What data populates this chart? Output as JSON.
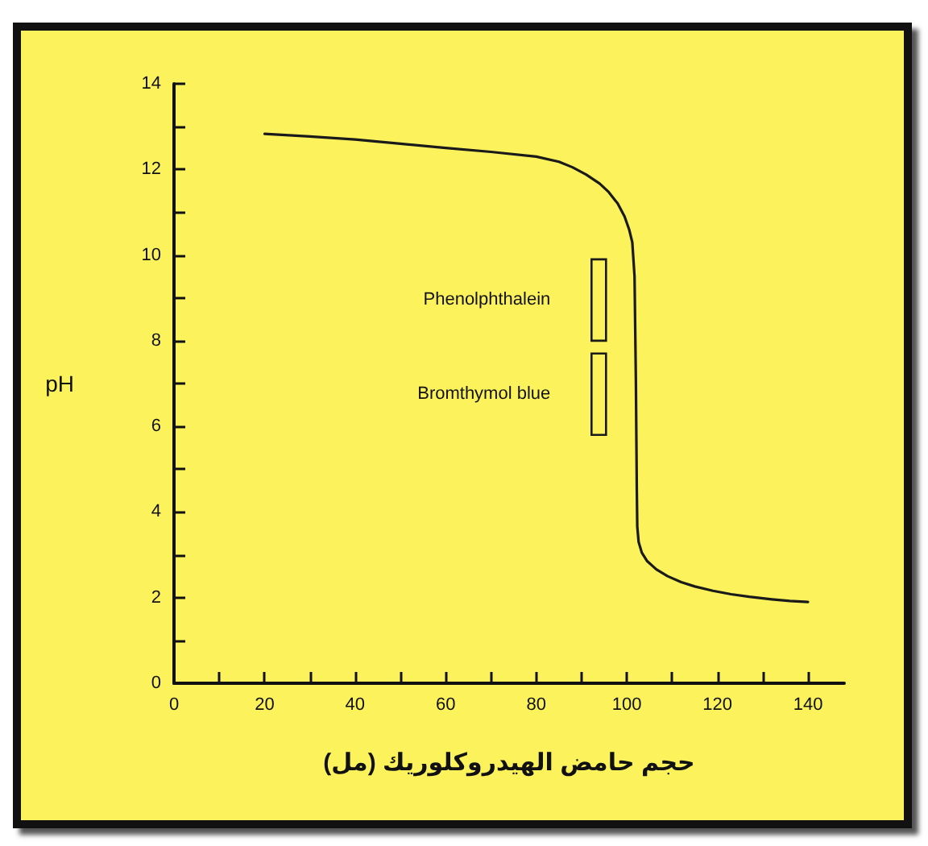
{
  "chart_data": {
    "type": "line",
    "xlabel": "حجم حامض الهيدروكلوريك (مل)",
    "ylabel": "pH",
    "series": [
      {
        "color": "#1a1a1a",
        "x": [
          20,
          30,
          40,
          50,
          60,
          70,
          80,
          85,
          88,
          91,
          94,
          96,
          98,
          99.5,
          100.5,
          101.2,
          101.7,
          102,
          102.2,
          102.3,
          102.6,
          103.3,
          104.5,
          106.5,
          109,
          112,
          115,
          119,
          123,
          127,
          132,
          136,
          140
        ],
        "values": [
          12.83,
          12.77,
          12.7,
          12.6,
          12.5,
          12.41,
          12.3,
          12.18,
          12.05,
          11.88,
          11.67,
          11.47,
          11.2,
          10.9,
          10.6,
          10.3,
          9.5,
          7.0,
          4.5,
          3.66,
          3.3,
          3.05,
          2.85,
          2.66,
          2.5,
          2.36,
          2.26,
          2.16,
          2.08,
          2.02,
          1.96,
          1.92,
          1.9
        ]
      },
      {
        "type": "bar",
        "color": "#1a1a1a",
        "x": [
          93.8,
          93.8
        ],
        "base": [
          8.0,
          5.8
        ],
        "values": [
          1.9,
          1.9
        ]
      }
    ],
    "annotations": [
      "Phenolphthalein",
      "Bromthymol blue"
    ],
    "xlim": [
      0,
      148
    ],
    "xticks": [
      0,
      {
        "value": 10,
        "label": null
      },
      20,
      {
        "value": 30,
        "label": null
      },
      40,
      {
        "value": 50,
        "label": null
      },
      60,
      {
        "value": 70,
        "label": null
      },
      80,
      {
        "value": 90,
        "label": null
      },
      100,
      {
        "value": 110,
        "label": null
      },
      120,
      {
        "value": 130,
        "label": null
      },
      140
    ],
    "ylim": [
      0,
      14
    ],
    "yticks": [
      0,
      {
        "value": 1,
        "label": null
      },
      2,
      {
        "value": 3,
        "label": null
      },
      4,
      {
        "value": 5,
        "label": null
      },
      6,
      {
        "value": 7,
        "label": null
      },
      8,
      {
        "value": 9,
        "label": null
      },
      10,
      {
        "value": 11,
        "label": null
      },
      12,
      {
        "value": 13,
        "label": null
      },
      14
    ],
    "grid": false,
    "marker": "none",
    "line_style": "solid"
  }
}
